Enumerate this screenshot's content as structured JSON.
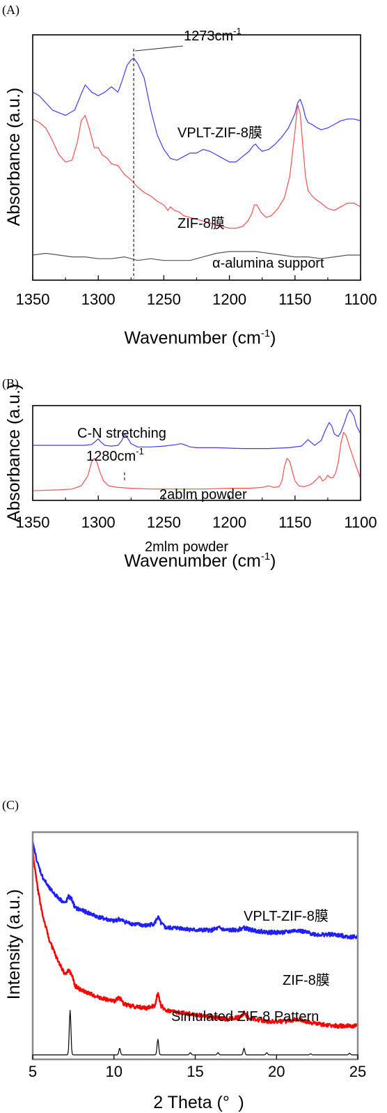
{
  "chart_data": [
    {
      "panel": "(A)",
      "type": "line",
      "xlabel_main": "Wavenumber (cm",
      "xlabel_sup": "-1",
      "xlabel_tail": ")",
      "ylabel": "Absorbance (a.u.)",
      "xlim": [
        1350,
        1100
      ],
      "x_ticks": [
        1350,
        1300,
        1250,
        1200,
        1150,
        1100
      ],
      "grid": false,
      "annotations": [
        {
          "text": "1273cm",
          "sup": "-1",
          "x": 1273
        },
        {
          "series": "VPLT-ZIF-8膜",
          "text": "VPLT-ZIF-8膜"
        },
        {
          "series": "ZIF-8膜",
          "text": "ZIF-8膜"
        },
        {
          "series": "α-alumina support",
          "text": "α-alumina support"
        }
      ],
      "series": [
        {
          "name": "VPLT-ZIF-8膜",
          "color": "#3b3bff",
          "x": [
            1350,
            1345,
            1335,
            1325,
            1318,
            1313,
            1310,
            1305,
            1300,
            1295,
            1290,
            1285,
            1282,
            1278,
            1275,
            1273,
            1270,
            1265,
            1260,
            1255,
            1250,
            1245,
            1240,
            1235,
            1230,
            1225,
            1220,
            1215,
            1210,
            1205,
            1200,
            1195,
            1190,
            1185,
            1182,
            1180,
            1178,
            1175,
            1170,
            1165,
            1160,
            1155,
            1150,
            1148,
            1146,
            1144,
            1142,
            1140,
            1137,
            1133,
            1130,
            1125,
            1120,
            1115,
            1110,
            1105,
            1100
          ],
          "y": [
            0.8,
            0.78,
            0.7,
            0.67,
            0.7,
            0.79,
            0.84,
            0.8,
            0.78,
            0.8,
            0.83,
            0.8,
            0.86,
            0.95,
            0.98,
            0.99,
            0.96,
            0.88,
            0.7,
            0.56,
            0.48,
            0.43,
            0.42,
            0.44,
            0.46,
            0.46,
            0.48,
            0.47,
            0.45,
            0.43,
            0.41,
            0.41,
            0.44,
            0.47,
            0.5,
            0.51,
            0.49,
            0.47,
            0.48,
            0.51,
            0.55,
            0.6,
            0.68,
            0.74,
            0.76,
            0.72,
            0.66,
            0.63,
            0.62,
            0.6,
            0.59,
            0.6,
            0.62,
            0.64,
            0.65,
            0.65,
            0.64
          ]
        },
        {
          "name": "ZIF-8膜",
          "color": "#ff4d4d",
          "x": [
            1350,
            1345,
            1340,
            1335,
            1330,
            1325,
            1320,
            1316,
            1313,
            1310,
            1307,
            1303,
            1300,
            1297,
            1293,
            1290,
            1285,
            1280,
            1275,
            1270,
            1265,
            1260,
            1255,
            1250,
            1247,
            1245,
            1242,
            1238,
            1235,
            1230,
            1225,
            1220,
            1215,
            1210,
            1205,
            1200,
            1195,
            1190,
            1186,
            1183,
            1181,
            1179,
            1176,
            1172,
            1168,
            1163,
            1158,
            1154,
            1150,
            1148,
            1146,
            1144,
            1142,
            1140,
            1137,
            1134,
            1130,
            1125,
            1120,
            1115,
            1110,
            1105,
            1100
          ],
          "y": [
            0.65,
            0.63,
            0.6,
            0.53,
            0.45,
            0.41,
            0.42,
            0.52,
            0.64,
            0.67,
            0.6,
            0.49,
            0.49,
            0.45,
            0.43,
            0.4,
            0.39,
            0.34,
            0.31,
            0.27,
            0.24,
            0.22,
            0.19,
            0.17,
            0.14,
            0.16,
            0.14,
            0.13,
            0.11,
            0.1,
            0.09,
            0.08,
            0.07,
            0.06,
            0.05,
            0.04,
            0.04,
            0.05,
            0.08,
            0.12,
            0.17,
            0.17,
            0.13,
            0.1,
            0.11,
            0.15,
            0.21,
            0.33,
            0.58,
            0.73,
            0.68,
            0.5,
            0.33,
            0.25,
            0.22,
            0.2,
            0.18,
            0.15,
            0.14,
            0.16,
            0.18,
            0.18,
            0.16
          ]
        },
        {
          "name": "α-alumina support",
          "color": "#555555",
          "x": [
            1350,
            1340,
            1330,
            1320,
            1310,
            1300,
            1290,
            1280,
            1270,
            1260,
            1250,
            1240,
            1230,
            1220,
            1210,
            1200,
            1190,
            1180,
            1170,
            1160,
            1150,
            1140,
            1130,
            1120,
            1110,
            1100
          ],
          "y": [
            -0.11,
            -0.1,
            -0.11,
            -0.12,
            -0.12,
            -0.13,
            -0.13,
            -0.12,
            -0.14,
            -0.13,
            -0.14,
            -0.14,
            -0.14,
            -0.12,
            -0.1,
            -0.09,
            -0.09,
            -0.09,
            -0.1,
            -0.11,
            -0.12,
            -0.12,
            -0.13,
            -0.12,
            -0.11,
            -0.11
          ]
        }
      ],
      "dashed_line_x": 1273
    },
    {
      "panel": "(B)",
      "type": "line",
      "xlabel_main": "Wavenumber (cm",
      "xlabel_sup": "-1",
      "xlabel_tail": ")",
      "ylabel": "Absorbance (a.u.)",
      "xlim": [
        1350,
        1100
      ],
      "x_ticks": [
        1350,
        1300,
        1250,
        1200,
        1150,
        1100
      ],
      "grid": false,
      "annotations": [
        {
          "text": "C-N stretching"
        },
        {
          "text": "1280cm",
          "sup": "-1",
          "x": 1280
        },
        {
          "series": "2ablm powder",
          "text": "2ablm powder"
        },
        {
          "series": "2mlm powder",
          "text": "2mlm powder"
        }
      ],
      "series": [
        {
          "name": "2ablm powder",
          "color": "#3b3bff",
          "x": [
            1350,
            1330,
            1310,
            1305,
            1302,
            1300,
            1298,
            1295,
            1290,
            1285,
            1282,
            1280,
            1278,
            1275,
            1270,
            1260,
            1250,
            1240,
            1237,
            1233,
            1230,
            1225,
            1210,
            1190,
            1170,
            1155,
            1145,
            1142,
            1140,
            1138,
            1135,
            1130,
            1127,
            1124,
            1122,
            1120,
            1117,
            1115,
            1112,
            1110,
            1108,
            1105,
            1103,
            1100
          ],
          "y": [
            0.56,
            0.56,
            0.56,
            0.57,
            0.61,
            0.64,
            0.6,
            0.56,
            0.55,
            0.56,
            0.62,
            0.7,
            0.66,
            0.58,
            0.54,
            0.54,
            0.55,
            0.57,
            0.58,
            0.56,
            0.54,
            0.53,
            0.53,
            0.52,
            0.52,
            0.53,
            0.55,
            0.6,
            0.63,
            0.6,
            0.56,
            0.62,
            0.74,
            0.84,
            0.8,
            0.7,
            0.67,
            0.72,
            0.85,
            0.95,
            1.0,
            0.92,
            0.8,
            0.7
          ]
        },
        {
          "name": "2mlm powder",
          "color": "#ff4d4d",
          "x": [
            1350,
            1330,
            1320,
            1313,
            1308,
            1305,
            1303,
            1301,
            1299,
            1296,
            1292,
            1285,
            1275,
            1260,
            1240,
            1220,
            1200,
            1185,
            1175,
            1170,
            1166,
            1162,
            1160,
            1158,
            1156,
            1154,
            1152,
            1150,
            1147,
            1143,
            1139,
            1136,
            1133,
            1131,
            1129,
            1127,
            1125,
            1123,
            1121,
            1119,
            1117,
            1115,
            1113,
            1111,
            1108,
            1104,
            1100
          ],
          "y": [
            0.0,
            0.01,
            0.02,
            0.06,
            0.18,
            0.36,
            0.4,
            0.35,
            0.24,
            0.12,
            0.06,
            0.04,
            0.03,
            0.02,
            0.02,
            0.02,
            0.03,
            0.03,
            0.04,
            0.06,
            0.04,
            0.05,
            0.12,
            0.3,
            0.4,
            0.36,
            0.24,
            0.12,
            0.06,
            0.05,
            0.07,
            0.1,
            0.15,
            0.18,
            0.12,
            0.14,
            0.19,
            0.16,
            0.16,
            0.22,
            0.35,
            0.58,
            0.72,
            0.68,
            0.52,
            0.33,
            0.15
          ]
        }
      ],
      "dashed_line_x": 1280
    },
    {
      "panel": "(C)",
      "type": "line",
      "xlabel_main": "2 Theta (°",
      "xlabel_sup": "",
      "xlabel_tail": ")",
      "ylabel": "Intensity (a.u.)",
      "xlim": [
        5,
        25
      ],
      "x_ticks": [
        5,
        10,
        15,
        20,
        25
      ],
      "grid": false,
      "annotations": [
        {
          "series": "VPLT-ZIF-8膜",
          "text": "VPLT-ZIF-8膜"
        },
        {
          "series": "ZIF-8膜",
          "text": "ZIF-8膜"
        },
        {
          "series": "Simulated ZIF-8 Pattern",
          "text": "Simulated ZIF-8 Pattern"
        }
      ],
      "series": [
        {
          "name": "VPLT-ZIF-8膜",
          "color": "#1f1fff",
          "noisy": true,
          "x": [
            5.0,
            5.3,
            5.6,
            6.0,
            6.5,
            7.0,
            7.2,
            7.4,
            7.6,
            8.0,
            9.0,
            10.0,
            10.3,
            10.6,
            11.0,
            12.0,
            12.5,
            12.7,
            12.9,
            13.2,
            14.0,
            15.0,
            16.0,
            16.5,
            16.8,
            17.5,
            18.0,
            18.5,
            19.5,
            20.5,
            21.3,
            21.8,
            22.5,
            23.5,
            24.5,
            25.0
          ],
          "y": [
            0.95,
            0.86,
            0.8,
            0.75,
            0.71,
            0.68,
            0.71,
            0.7,
            0.66,
            0.65,
            0.62,
            0.6,
            0.61,
            0.6,
            0.59,
            0.58,
            0.59,
            0.62,
            0.59,
            0.57,
            0.57,
            0.56,
            0.56,
            0.57,
            0.56,
            0.56,
            0.57,
            0.56,
            0.55,
            0.55,
            0.56,
            0.55,
            0.54,
            0.54,
            0.53,
            0.53
          ]
        },
        {
          "name": "ZIF-8膜",
          "color": "#ff0000",
          "noisy": true,
          "x": [
            5.0,
            5.3,
            5.6,
            6.0,
            6.5,
            7.0,
            7.2,
            7.4,
            7.6,
            8.0,
            9.0,
            10.0,
            10.3,
            10.6,
            11.0,
            12.0,
            12.5,
            12.7,
            12.9,
            13.2,
            14.0,
            15.0,
            16.0,
            17.0,
            17.8,
            18.0,
            18.2,
            18.6,
            19.5,
            20.5,
            21.3,
            21.8,
            22.5,
            23.5,
            24.5,
            25.0
          ],
          "y": [
            0.91,
            0.75,
            0.63,
            0.52,
            0.43,
            0.36,
            0.38,
            0.36,
            0.31,
            0.29,
            0.26,
            0.24,
            0.26,
            0.23,
            0.22,
            0.21,
            0.22,
            0.28,
            0.22,
            0.2,
            0.19,
            0.18,
            0.17,
            0.16,
            0.17,
            0.19,
            0.17,
            0.16,
            0.15,
            0.15,
            0.16,
            0.15,
            0.14,
            0.13,
            0.13,
            0.13
          ]
        },
        {
          "name": "Simulated ZIF-8 Pattern",
          "color": "#000000",
          "peaks": [
            [
              7.3,
              0.2
            ],
            [
              10.35,
              0.03
            ],
            [
              12.7,
              0.07
            ],
            [
              14.7,
              0.01
            ],
            [
              16.4,
              0.01
            ],
            [
              18.0,
              0.03
            ],
            [
              19.4,
              0.01
            ],
            [
              22.1,
              0.005
            ],
            [
              24.5,
              0.008
            ]
          ],
          "baseline": 0.0
        }
      ]
    }
  ]
}
